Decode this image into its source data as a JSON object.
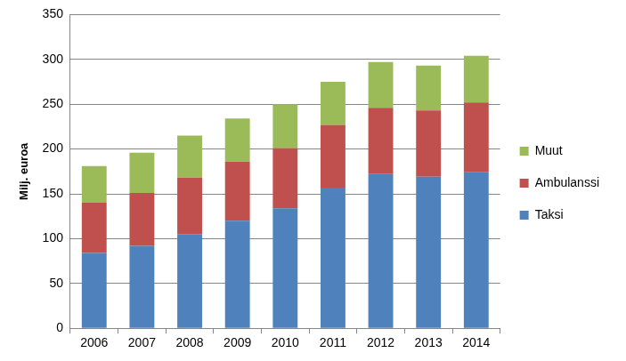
{
  "chart_data": {
    "type": "bar",
    "stacked": true,
    "y_label": "Milj. euroa",
    "categories": [
      "2006",
      "2007",
      "2008",
      "2009",
      "2010",
      "2011",
      "2012",
      "2013",
      "2014"
    ],
    "series": [
      {
        "name": "Taksi",
        "color": "#4f81bd",
        "values": [
          84,
          92,
          105,
          120,
          134,
          157,
          172,
          169,
          174
        ]
      },
      {
        "name": "Ambulanssi",
        "color": "#c0504d",
        "values": [
          56,
          59,
          63,
          66,
          67,
          70,
          74,
          74,
          78
        ]
      },
      {
        "name": "Muut",
        "color": "#9bbb59",
        "values": [
          41,
          45,
          47,
          48,
          49,
          48,
          51,
          50,
          52
        ]
      }
    ],
    "ylim": [
      0,
      350
    ],
    "yticks": [
      0,
      50,
      100,
      150,
      200,
      250,
      300,
      350
    ],
    "grid": true,
    "legend": "right"
  }
}
